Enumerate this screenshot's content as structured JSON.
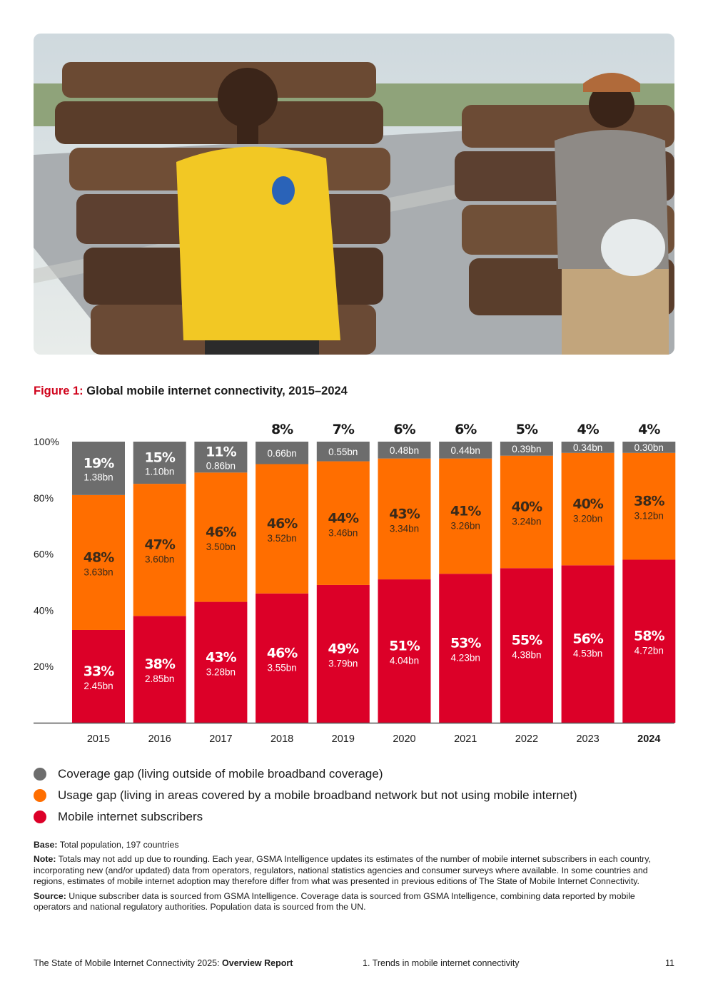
{
  "figure": {
    "label": "Figure 1:",
    "title": "Global mobile internet connectivity, 2015–2024"
  },
  "colors": {
    "coverage_gap": "#6d6d6d",
    "usage_gap": "#ff6e00",
    "subscribers": "#dc0028",
    "accent": "#d0021b"
  },
  "chart_data": {
    "type": "bar",
    "stacked": true,
    "categories": [
      "2015",
      "2016",
      "2017",
      "2018",
      "2019",
      "2020",
      "2021",
      "2022",
      "2023",
      "2024"
    ],
    "highlight_category": "2024",
    "ylim": [
      0,
      100
    ],
    "yticks": [
      "20%",
      "40%",
      "60%",
      "80%",
      "100%"
    ],
    "series": [
      {
        "name": "Mobile internet subscribers",
        "key": "subscribers",
        "values": [
          33,
          38,
          43,
          46,
          49,
          51,
          53,
          55,
          56,
          58
        ],
        "labels": [
          "33%",
          "38%",
          "43%",
          "46%",
          "49%",
          "51%",
          "53%",
          "55%",
          "56%",
          "58%"
        ],
        "counts": [
          "2.45bn",
          "2.85bn",
          "3.28bn",
          "3.55bn",
          "3.79bn",
          "4.04bn",
          "4.23bn",
          "4.38bn",
          "4.53bn",
          "4.72bn"
        ]
      },
      {
        "name": "Usage gap",
        "key": "usage_gap",
        "values": [
          48,
          47,
          46,
          46,
          44,
          43,
          41,
          40,
          40,
          38
        ],
        "labels": [
          "48%",
          "47%",
          "46%",
          "46%",
          "44%",
          "43%",
          "41%",
          "40%",
          "40%",
          "38%"
        ],
        "counts": [
          "3.63bn",
          "3.60bn",
          "3.50bn",
          "3.52bn",
          "3.46bn",
          "3.34bn",
          "3.26bn",
          "3.24bn",
          "3.20bn",
          "3.12bn"
        ]
      },
      {
        "name": "Coverage gap",
        "key": "coverage_gap",
        "values": [
          19,
          15,
          11,
          8,
          7,
          6,
          6,
          5,
          4,
          4
        ],
        "labels": [
          "19%",
          "15%",
          "11%",
          "8%",
          "7%",
          "6%",
          "6%",
          "5%",
          "4%",
          "4%"
        ],
        "counts": [
          "1.38bn",
          "1.10bn",
          "0.86bn",
          "0.66bn",
          "0.55bn",
          "0.48bn",
          "0.44bn",
          "0.39bn",
          "0.34bn",
          "0.30bn"
        ],
        "label_above_bar": [
          false,
          false,
          false,
          true,
          true,
          true,
          true,
          true,
          true,
          true
        ]
      }
    ]
  },
  "legend": [
    {
      "key": "coverage_gap",
      "label": "Coverage gap (living outside of mobile broadband coverage)",
      "color": "#6d6d6d"
    },
    {
      "key": "usage_gap",
      "label": "Usage gap (living in areas covered by a mobile broadband network but not using mobile internet)",
      "color": "#ff6e00"
    },
    {
      "key": "subscribers",
      "label": "Mobile internet subscribers",
      "color": "#dc0028"
    }
  ],
  "notes": {
    "base_label": "Base:",
    "base_text": " Total population, 197 countries",
    "note_label": "Note:",
    "note_text": " Totals may not add up due to rounding. Each year, GSMA Intelligence updates its estimates of the number of mobile internet subscribers in each country, incorporating new (and/or updated) data from operators, regulators, national statistics agencies and consumer surveys where available. In some countries and regions, estimates of mobile internet adoption may therefore differ from what was presented in previous editions of The State of Mobile Internet Connectivity.",
    "source_label": "Source:",
    "source_text": " Unique subscriber data is sourced from GSMA Intelligence. Coverage data is sourced from GSMA Intelligence, combining data reported by mobile operators and national regulatory authorities. Population data is sourced from the UN."
  },
  "footer": {
    "report_prefix": "The State of Mobile Internet Connectivity 2025: ",
    "report_bold": "Overview Report",
    "section": "1. Trends in mobile internet connectivity",
    "page": "11"
  }
}
